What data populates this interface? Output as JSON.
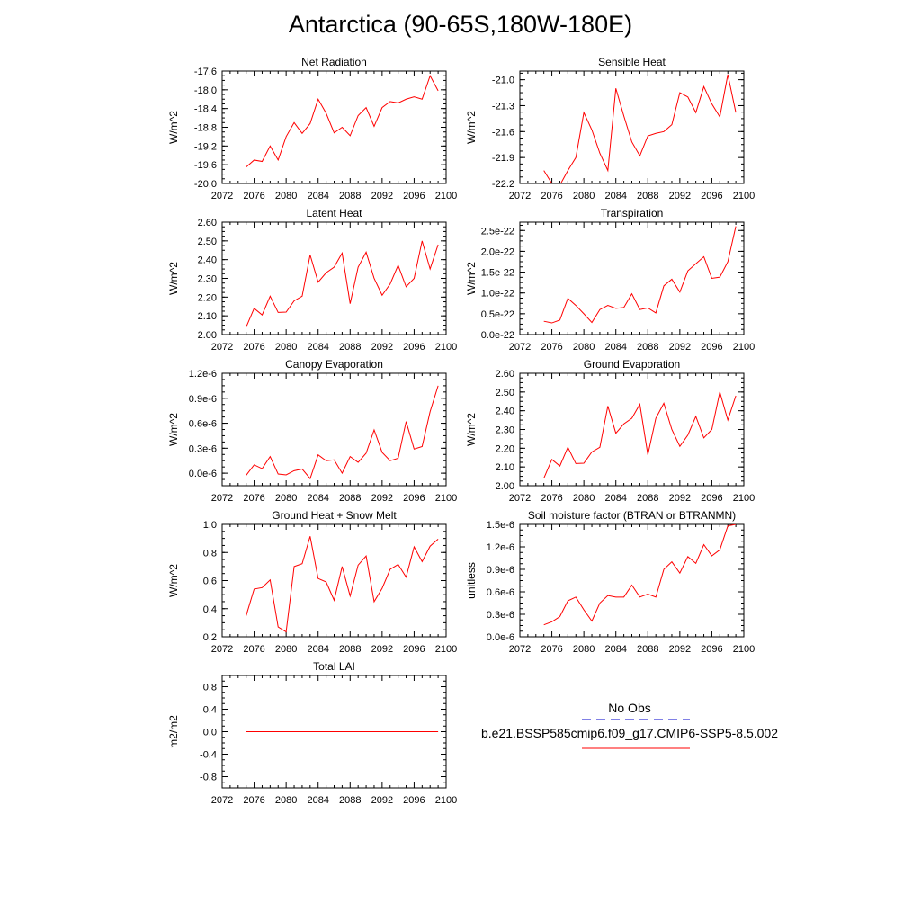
{
  "page": {
    "title": "Antarctica (90-65S,180W-180E)"
  },
  "legend": {
    "obs_label": "No Obs",
    "model_label": "b.e21.BSSP585cmip6.f09_g17.CMIP6-SSP5-8.5.002",
    "obs_color": "#0000cc",
    "model_color": "#ff0000"
  },
  "chart_data": [
    {
      "type": "line",
      "title": "Net Radiation",
      "ylabel": "W/m^2",
      "xlim": [
        2072,
        2100
      ],
      "ylim": [
        -20.0,
        -17.6
      ],
      "xticks": [
        "2072",
        "2076",
        "2080",
        "2084",
        "2088",
        "2092",
        "2096",
        "2100"
      ],
      "yticks": [
        -20.0,
        -19.6,
        -19.2,
        -18.8,
        -18.4,
        -18.0,
        -17.6
      ],
      "yticklabels": [
        "-20.0",
        "-19.6",
        "-19.2",
        "-18.8",
        "-18.4",
        "-18.0",
        "-17.6"
      ],
      "x": [
        2075,
        2076,
        2077,
        2078,
        2079,
        2080,
        2081,
        2082,
        2083,
        2084,
        2085,
        2086,
        2087,
        2088,
        2089,
        2090,
        2091,
        2092,
        2093,
        2094,
        2095,
        2096,
        2097,
        2098,
        2099
      ],
      "values": [
        -19.65,
        -19.5,
        -19.53,
        -19.2,
        -19.5,
        -19.0,
        -18.7,
        -18.93,
        -18.72,
        -18.2,
        -18.5,
        -18.92,
        -18.8,
        -18.98,
        -18.55,
        -18.38,
        -18.78,
        -18.38,
        -18.25,
        -18.28,
        -18.2,
        -18.15,
        -18.2,
        -17.7,
        -18.02
      ]
    },
    {
      "type": "line",
      "title": "Sensible Heat",
      "ylabel": "W/m^2",
      "xlim": [
        2072,
        2100
      ],
      "ylim": [
        -22.2,
        -20.9
      ],
      "xticks": [
        "2072",
        "2076",
        "2080",
        "2084",
        "2088",
        "2092",
        "2096",
        "2100"
      ],
      "yticks": [
        -22.2,
        -21.9,
        -21.6,
        -21.3,
        -21.0
      ],
      "yticklabels": [
        "-22.2",
        "-21.9",
        "-21.6",
        "-21.3",
        "-21.0"
      ],
      "x": [
        2075,
        2076,
        2077,
        2078,
        2079,
        2080,
        2081,
        2082,
        2083,
        2084,
        2085,
        2086,
        2087,
        2088,
        2089,
        2090,
        2091,
        2092,
        2093,
        2094,
        2095,
        2096,
        2097,
        2098,
        2099
      ],
      "values": [
        -22.05,
        -22.2,
        -22.22,
        -22.05,
        -21.9,
        -21.38,
        -21.58,
        -21.85,
        -22.05,
        -21.1,
        -21.42,
        -21.72,
        -21.88,
        -21.65,
        -21.62,
        -21.6,
        -21.52,
        -21.15,
        -21.2,
        -21.38,
        -21.08,
        -21.28,
        -21.43,
        -20.94,
        -21.38
      ]
    },
    {
      "type": "line",
      "title": "Latent Heat",
      "ylabel": "W/m^2",
      "xlim": [
        2072,
        2100
      ],
      "ylim": [
        2.0,
        2.6
      ],
      "xticks": [
        "2072",
        "2076",
        "2080",
        "2084",
        "2088",
        "2092",
        "2096",
        "2100"
      ],
      "yticks": [
        2.0,
        2.1,
        2.2,
        2.3,
        2.4,
        2.5,
        2.6
      ],
      "yticklabels": [
        "2.00",
        "2.10",
        "2.20",
        "2.30",
        "2.40",
        "2.50",
        "2.60"
      ],
      "x": [
        2075,
        2076,
        2077,
        2078,
        2079,
        2080,
        2081,
        2082,
        2083,
        2084,
        2085,
        2086,
        2087,
        2088,
        2089,
        2090,
        2091,
        2092,
        2093,
        2094,
        2095,
        2096,
        2097,
        2098,
        2099
      ],
      "values": [
        2.04,
        2.14,
        2.105,
        2.205,
        2.118,
        2.12,
        2.18,
        2.205,
        2.425,
        2.28,
        2.33,
        2.36,
        2.435,
        2.165,
        2.36,
        2.44,
        2.3,
        2.21,
        2.27,
        2.37,
        2.255,
        2.3,
        2.5,
        2.35,
        2.48
      ]
    },
    {
      "type": "line",
      "title": "Transpiration",
      "ylabel": "W/m^2",
      "xlim": [
        2072,
        2100
      ],
      "ylim": [
        0,
        2.7e-22
      ],
      "xticks": [
        "2072",
        "2076",
        "2080",
        "2084",
        "2088",
        "2092",
        "2096",
        "2100"
      ],
      "yticks": [
        0,
        5e-23,
        1e-22,
        1.5e-22,
        2e-22,
        2.5e-22
      ],
      "yticklabels": [
        "0.0e-22",
        "0.5e-22",
        "1.0e-22",
        "1.5e-22",
        "2.0e-22",
        "2.5e-22"
      ],
      "x": [
        2075,
        2076,
        2077,
        2078,
        2079,
        2080,
        2081,
        2082,
        2083,
        2084,
        2085,
        2086,
        2087,
        2088,
        2089,
        2090,
        2091,
        2092,
        2093,
        2094,
        2095,
        2096,
        2097,
        2098,
        2099
      ],
      "values": [
        3.2e-23,
        2.8e-23,
        3.5e-23,
        8.7e-23,
        7e-23,
        5e-23,
        2.9e-23,
        6e-23,
        7e-23,
        6.3e-23,
        6.5e-23,
        9.8e-23,
        6e-23,
        6.4e-23,
        5.2e-23,
        1.17e-22,
        1.33e-22,
        1.02e-22,
        1.53e-22,
        1.7e-22,
        1.87e-22,
        1.35e-22,
        1.38e-22,
        1.75e-22,
        2.6e-22
      ]
    },
    {
      "type": "line",
      "title": "Canopy Evaporation",
      "ylabel": "W/m^2",
      "xlim": [
        2072,
        2100
      ],
      "ylim": [
        -1.5e-07,
        1.2e-06
      ],
      "xticks": [
        "2072",
        "2076",
        "2080",
        "2084",
        "2088",
        "2092",
        "2096",
        "2100"
      ],
      "yticks": [
        0,
        3e-07,
        6e-07,
        9e-07,
        1.2e-06
      ],
      "yticklabels": [
        "0.0e-6",
        "0.3e-6",
        "0.6e-6",
        "0.9e-6",
        "1.2e-6"
      ],
      "x": [
        2075,
        2076,
        2077,
        2078,
        2079,
        2080,
        2081,
        2082,
        2083,
        2084,
        2085,
        2086,
        2087,
        2088,
        2089,
        2090,
        2091,
        2092,
        2093,
        2094,
        2095,
        2096,
        2097,
        2098,
        2099
      ],
      "values": [
        -2.5e-08,
        1e-07,
        5.5e-08,
        2e-07,
        -1e-08,
        -2e-08,
        3e-08,
        5e-08,
        -6.5e-08,
        2.2e-07,
        1.5e-07,
        1.6e-07,
        0,
        2e-07,
        1.3e-07,
        2.4e-07,
        5.2e-07,
        2.5e-07,
        1.5e-07,
        1.8e-07,
        6.2e-07,
        2.9e-07,
        3.2e-07,
        7.4e-07,
        1.05e-06
      ]
    },
    {
      "type": "line",
      "title": "Ground Evaporation",
      "ylabel": "W/m^2",
      "xlim": [
        2072,
        2100
      ],
      "ylim": [
        2.0,
        2.6
      ],
      "xticks": [
        "2072",
        "2076",
        "2080",
        "2084",
        "2088",
        "2092",
        "2096",
        "2100"
      ],
      "yticks": [
        2.0,
        2.1,
        2.2,
        2.3,
        2.4,
        2.5,
        2.6
      ],
      "yticklabels": [
        "2.00",
        "2.10",
        "2.20",
        "2.30",
        "2.40",
        "2.50",
        "2.60"
      ],
      "x": [
        2075,
        2076,
        2077,
        2078,
        2079,
        2080,
        2081,
        2082,
        2083,
        2084,
        2085,
        2086,
        2087,
        2088,
        2089,
        2090,
        2091,
        2092,
        2093,
        2094,
        2095,
        2096,
        2097,
        2098,
        2099
      ],
      "values": [
        2.04,
        2.14,
        2.105,
        2.205,
        2.118,
        2.12,
        2.18,
        2.205,
        2.425,
        2.28,
        2.33,
        2.36,
        2.435,
        2.165,
        2.36,
        2.44,
        2.3,
        2.21,
        2.27,
        2.37,
        2.255,
        2.3,
        2.5,
        2.35,
        2.48
      ]
    },
    {
      "type": "line",
      "title": "Ground Heat + Snow Melt",
      "ylabel": "W/m^2",
      "xlim": [
        2072,
        2100
      ],
      "ylim": [
        0.2,
        1.0
      ],
      "xticks": [
        "2072",
        "2076",
        "2080",
        "2084",
        "2088",
        "2092",
        "2096",
        "2100"
      ],
      "yticks": [
        0.2,
        0.4,
        0.6,
        0.8,
        1.0
      ],
      "yticklabels": [
        "0.2",
        "0.4",
        "0.6",
        "0.8",
        "1.0"
      ],
      "x": [
        2075,
        2076,
        2077,
        2078,
        2079,
        2080,
        2081,
        2082,
        2083,
        2084,
        2085,
        2086,
        2087,
        2088,
        2089,
        2090,
        2091,
        2092,
        2093,
        2094,
        2095,
        2096,
        2097,
        2098,
        2099
      ],
      "values": [
        0.35,
        0.54,
        0.55,
        0.605,
        0.27,
        0.235,
        0.7,
        0.72,
        0.915,
        0.615,
        0.59,
        0.46,
        0.7,
        0.49,
        0.71,
        0.775,
        0.45,
        0.545,
        0.68,
        0.715,
        0.625,
        0.84,
        0.735,
        0.845,
        0.895
      ]
    },
    {
      "type": "line",
      "title": "Soil moisture factor (BTRAN or BTRANMN)",
      "ylabel": "unitless",
      "xlim": [
        2072,
        2100
      ],
      "ylim": [
        0,
        1.5e-06
      ],
      "xticks": [
        "2072",
        "2076",
        "2080",
        "2084",
        "2088",
        "2092",
        "2096",
        "2100"
      ],
      "yticks": [
        0,
        3e-07,
        6e-07,
        9e-07,
        1.2e-06,
        1.5e-06
      ],
      "yticklabels": [
        "0.0e-6",
        "0.3e-6",
        "0.6e-6",
        "0.9e-6",
        "1.2e-6",
        "1.5e-6"
      ],
      "x": [
        2075,
        2076,
        2077,
        2078,
        2079,
        2080,
        2081,
        2082,
        2083,
        2084,
        2085,
        2086,
        2087,
        2088,
        2089,
        2090,
        2091,
        2092,
        2093,
        2094,
        2095,
        2096,
        2097,
        2098,
        2099
      ],
      "values": [
        1.6e-07,
        2e-07,
        2.7e-07,
        4.8e-07,
        5.3e-07,
        3.6e-07,
        2.1e-07,
        4.5e-07,
        5.5e-07,
        5.3e-07,
        5.3e-07,
        6.9e-07,
        5.3e-07,
        5.7e-07,
        5.3e-07,
        9e-07,
        1e-06,
        8.5e-07,
        1.07e-06,
        9.8e-07,
        1.23e-06,
        1.08e-06,
        1.16e-06,
        1.48e-06,
        1.5e-06
      ]
    },
    {
      "type": "line",
      "title": "Total LAI",
      "ylabel": "m2/m2",
      "xlim": [
        2072,
        2100
      ],
      "ylim": [
        -1.0,
        1.0
      ],
      "xticks": [
        "2072",
        "2076",
        "2080",
        "2084",
        "2088",
        "2092",
        "2096",
        "2100"
      ],
      "yticks": [
        -0.8,
        -0.4,
        0.0,
        0.4,
        0.8
      ],
      "yticklabels": [
        "-0.8",
        "-0.4",
        "0.0",
        "0.4",
        "0.8"
      ],
      "x": [
        2075,
        2076,
        2077,
        2078,
        2079,
        2080,
        2081,
        2082,
        2083,
        2084,
        2085,
        2086,
        2087,
        2088,
        2089,
        2090,
        2091,
        2092,
        2093,
        2094,
        2095,
        2096,
        2097,
        2098,
        2099
      ],
      "values": [
        0,
        0,
        0,
        0,
        0,
        0,
        0,
        0,
        0,
        0,
        0,
        0,
        0,
        0,
        0,
        0,
        0,
        0,
        0,
        0,
        0,
        0,
        0,
        0,
        0
      ]
    }
  ]
}
